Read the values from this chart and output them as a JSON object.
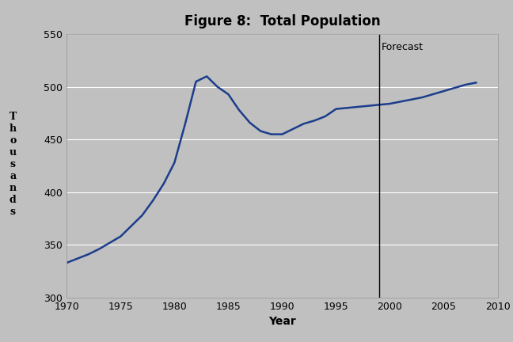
{
  "title": "Figure 8:  Total Population",
  "xlabel": "Year",
  "ylabel_letters": "T\nh\no\nu\ns\na\nn\nd\ns",
  "background_color": "#c0c0c0",
  "plot_background_color": "#c0c0c0",
  "line_color": "#1c3d8c",
  "line_width": 1.8,
  "forecast_line_x": 1999,
  "forecast_label": "Forecast",
  "xlim": [
    1970,
    2010
  ],
  "ylim": [
    300,
    550
  ],
  "xticks": [
    1970,
    1975,
    1980,
    1985,
    1990,
    1995,
    2000,
    2005,
    2010
  ],
  "yticks": [
    300,
    350,
    400,
    450,
    500,
    550
  ],
  "years": [
    1970,
    1971,
    1972,
    1973,
    1974,
    1975,
    1976,
    1977,
    1978,
    1979,
    1980,
    1981,
    1982,
    1983,
    1984,
    1985,
    1986,
    1987,
    1988,
    1989,
    1990,
    1991,
    1992,
    1993,
    1994,
    1995,
    1996,
    1997,
    1998,
    1999,
    2000,
    2001,
    2002,
    2003,
    2004,
    2005,
    2006,
    2007,
    2008
  ],
  "population": [
    333,
    337,
    341,
    346,
    352,
    358,
    368,
    378,
    392,
    408,
    428,
    465,
    505,
    510,
    500,
    493,
    478,
    466,
    458,
    455,
    455,
    460,
    465,
    468,
    472,
    479,
    480,
    481,
    482,
    483,
    484,
    486,
    488,
    490,
    493,
    496,
    499,
    502,
    504
  ],
  "title_fontsize": 12,
  "tick_fontsize": 9,
  "label_fontsize": 10
}
